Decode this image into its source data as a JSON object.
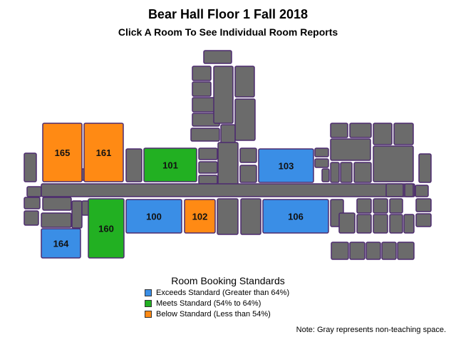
{
  "title": "Bear Hall Floor 1 Fall 2018",
  "subtitle": "Click A Room To See Individual Room Reports",
  "colors": {
    "exceeds": "#3a8ee6",
    "meets": "#22b022",
    "below": "#ff8a14",
    "non_teaching": "#6b6b6b",
    "outline": "#4d2b6f"
  },
  "rooms": [
    {
      "id": "165",
      "status": "below"
    },
    {
      "id": "161",
      "status": "below"
    },
    {
      "id": "101",
      "status": "meets"
    },
    {
      "id": "103",
      "status": "exceeds"
    },
    {
      "id": "100",
      "status": "exceeds"
    },
    {
      "id": "102",
      "status": "below"
    },
    {
      "id": "106",
      "status": "exceeds"
    },
    {
      "id": "160",
      "status": "meets"
    },
    {
      "id": "164",
      "status": "exceeds"
    }
  ],
  "legend": {
    "title": "Room Booking Standards",
    "items": [
      {
        "label": "Exceeds Standard (Greater than 64%)",
        "status": "exceeds"
      },
      {
        "label": "Meets Standard (54% to 64%)",
        "status": "meets"
      },
      {
        "label": "Below Standard (Less than 54%)",
        "status": "below"
      }
    ]
  },
  "note": "Note: Gray represents non-teaching space."
}
